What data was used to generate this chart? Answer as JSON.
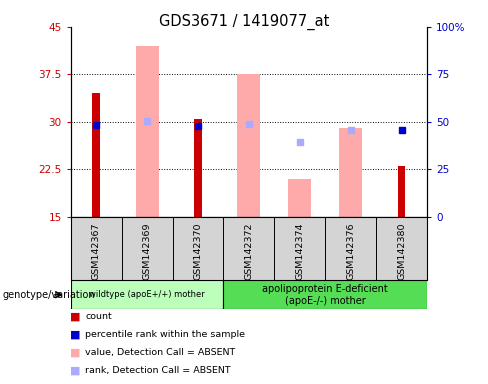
{
  "title": "GDS3671 / 1419077_at",
  "samples": [
    "GSM142367",
    "GSM142369",
    "GSM142370",
    "GSM142372",
    "GSM142374",
    "GSM142376",
    "GSM142380"
  ],
  "ylim_left": [
    15,
    45
  ],
  "ylim_right": [
    0,
    100
  ],
  "yticks_left": [
    15,
    22.5,
    30,
    37.5,
    45
  ],
  "yticks_right": [
    0,
    25,
    50,
    75,
    100
  ],
  "ytick_labels_left": [
    "15",
    "22.5",
    "30",
    "37.5",
    "45"
  ],
  "ytick_labels_right": [
    "0",
    "25",
    "50",
    "75",
    "100%"
  ],
  "count_values": [
    34.5,
    null,
    30.5,
    null,
    null,
    null,
    23.0
  ],
  "rank_values": [
    29.5,
    null,
    29.3,
    null,
    null,
    null,
    28.7
  ],
  "absent_value_values": [
    null,
    42.0,
    null,
    37.5,
    21.0,
    29.0,
    null
  ],
  "absent_rank_values": [
    null,
    30.2,
    null,
    29.7,
    26.8,
    28.7,
    null
  ],
  "count_color": "#cc0000",
  "rank_color": "#0000cc",
  "absent_value_color": "#ffaaaa",
  "absent_rank_color": "#aaaaff",
  "wildtype_label": "wildtype (apoE+/+) mother",
  "apoe_label": "apolipoprotein E-deficient\n(apoE-/-) mother",
  "wildtype_color": "#bbffbb",
  "apoe_color": "#55dd55",
  "genotype_label": "genotype/variation",
  "legend_items": [
    {
      "label": "count",
      "color": "#cc0000"
    },
    {
      "label": "percentile rank within the sample",
      "color": "#0000cc"
    },
    {
      "label": "value, Detection Call = ABSENT",
      "color": "#ffaaaa"
    },
    {
      "label": "rank, Detection Call = ABSENT",
      "color": "#aaaaff"
    }
  ],
  "grid_color": "black",
  "plot_bg_color": "white",
  "axis_color_left": "#cc0000",
  "axis_color_right": "#0000cc"
}
